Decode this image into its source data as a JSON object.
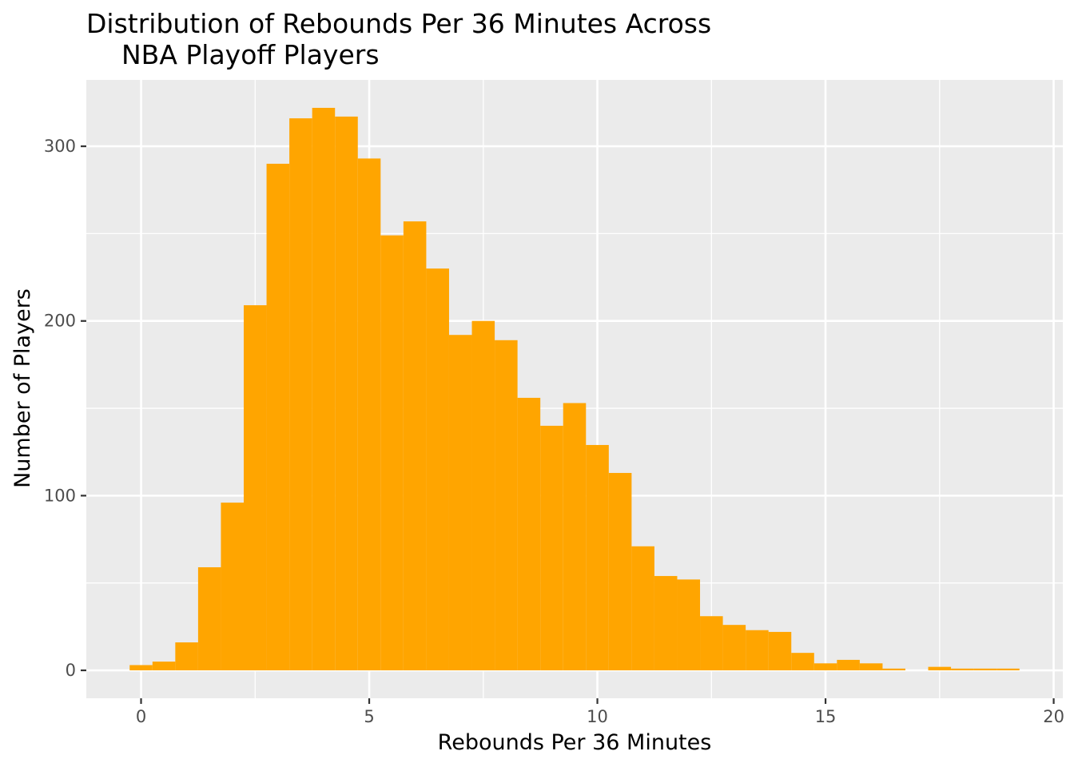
{
  "chart_data": {
    "type": "bar",
    "title_lines": [
      "Distribution of Rebounds Per 36 Minutes Across",
      "NBA Playoff Players"
    ],
    "xlabel": "Rebounds Per 36 Minutes",
    "ylabel": "Number of Players",
    "bin_width": 0.5,
    "bins": [
      {
        "x": 0.0,
        "count": 3
      },
      {
        "x": 0.5,
        "count": 5
      },
      {
        "x": 1.0,
        "count": 16
      },
      {
        "x": 1.5,
        "count": 59
      },
      {
        "x": 2.0,
        "count": 96
      },
      {
        "x": 2.5,
        "count": 209
      },
      {
        "x": 3.0,
        "count": 290
      },
      {
        "x": 3.5,
        "count": 316
      },
      {
        "x": 4.0,
        "count": 322
      },
      {
        "x": 4.5,
        "count": 317
      },
      {
        "x": 5.0,
        "count": 293
      },
      {
        "x": 5.5,
        "count": 249
      },
      {
        "x": 6.0,
        "count": 257
      },
      {
        "x": 6.5,
        "count": 230
      },
      {
        "x": 7.0,
        "count": 192
      },
      {
        "x": 7.5,
        "count": 200
      },
      {
        "x": 8.0,
        "count": 189
      },
      {
        "x": 8.5,
        "count": 156
      },
      {
        "x": 9.0,
        "count": 140
      },
      {
        "x": 9.5,
        "count": 153
      },
      {
        "x": 10.0,
        "count": 129
      },
      {
        "x": 10.5,
        "count": 113
      },
      {
        "x": 11.0,
        "count": 71
      },
      {
        "x": 11.5,
        "count": 54
      },
      {
        "x": 12.0,
        "count": 52
      },
      {
        "x": 12.5,
        "count": 31
      },
      {
        "x": 13.0,
        "count": 26
      },
      {
        "x": 13.5,
        "count": 23
      },
      {
        "x": 14.0,
        "count": 22
      },
      {
        "x": 14.5,
        "count": 10
      },
      {
        "x": 15.0,
        "count": 4
      },
      {
        "x": 15.5,
        "count": 6
      },
      {
        "x": 16.0,
        "count": 4
      },
      {
        "x": 16.5,
        "count": 1
      },
      {
        "x": 17.0,
        "count": 0
      },
      {
        "x": 17.5,
        "count": 2
      },
      {
        "x": 18.0,
        "count": 1
      },
      {
        "x": 18.5,
        "count": 1
      },
      {
        "x": 19.0,
        "count": 1
      }
    ],
    "xlim": [
      -1.2,
      20.2
    ],
    "ylim": [
      -16,
      338
    ],
    "x_ticks": [
      0,
      5,
      10,
      15,
      20
    ],
    "y_ticks": [
      0,
      100,
      200,
      300
    ],
    "bar_color": "#FFA500",
    "panel_background": "#EBEBEB",
    "grid": true,
    "legend": "none"
  }
}
